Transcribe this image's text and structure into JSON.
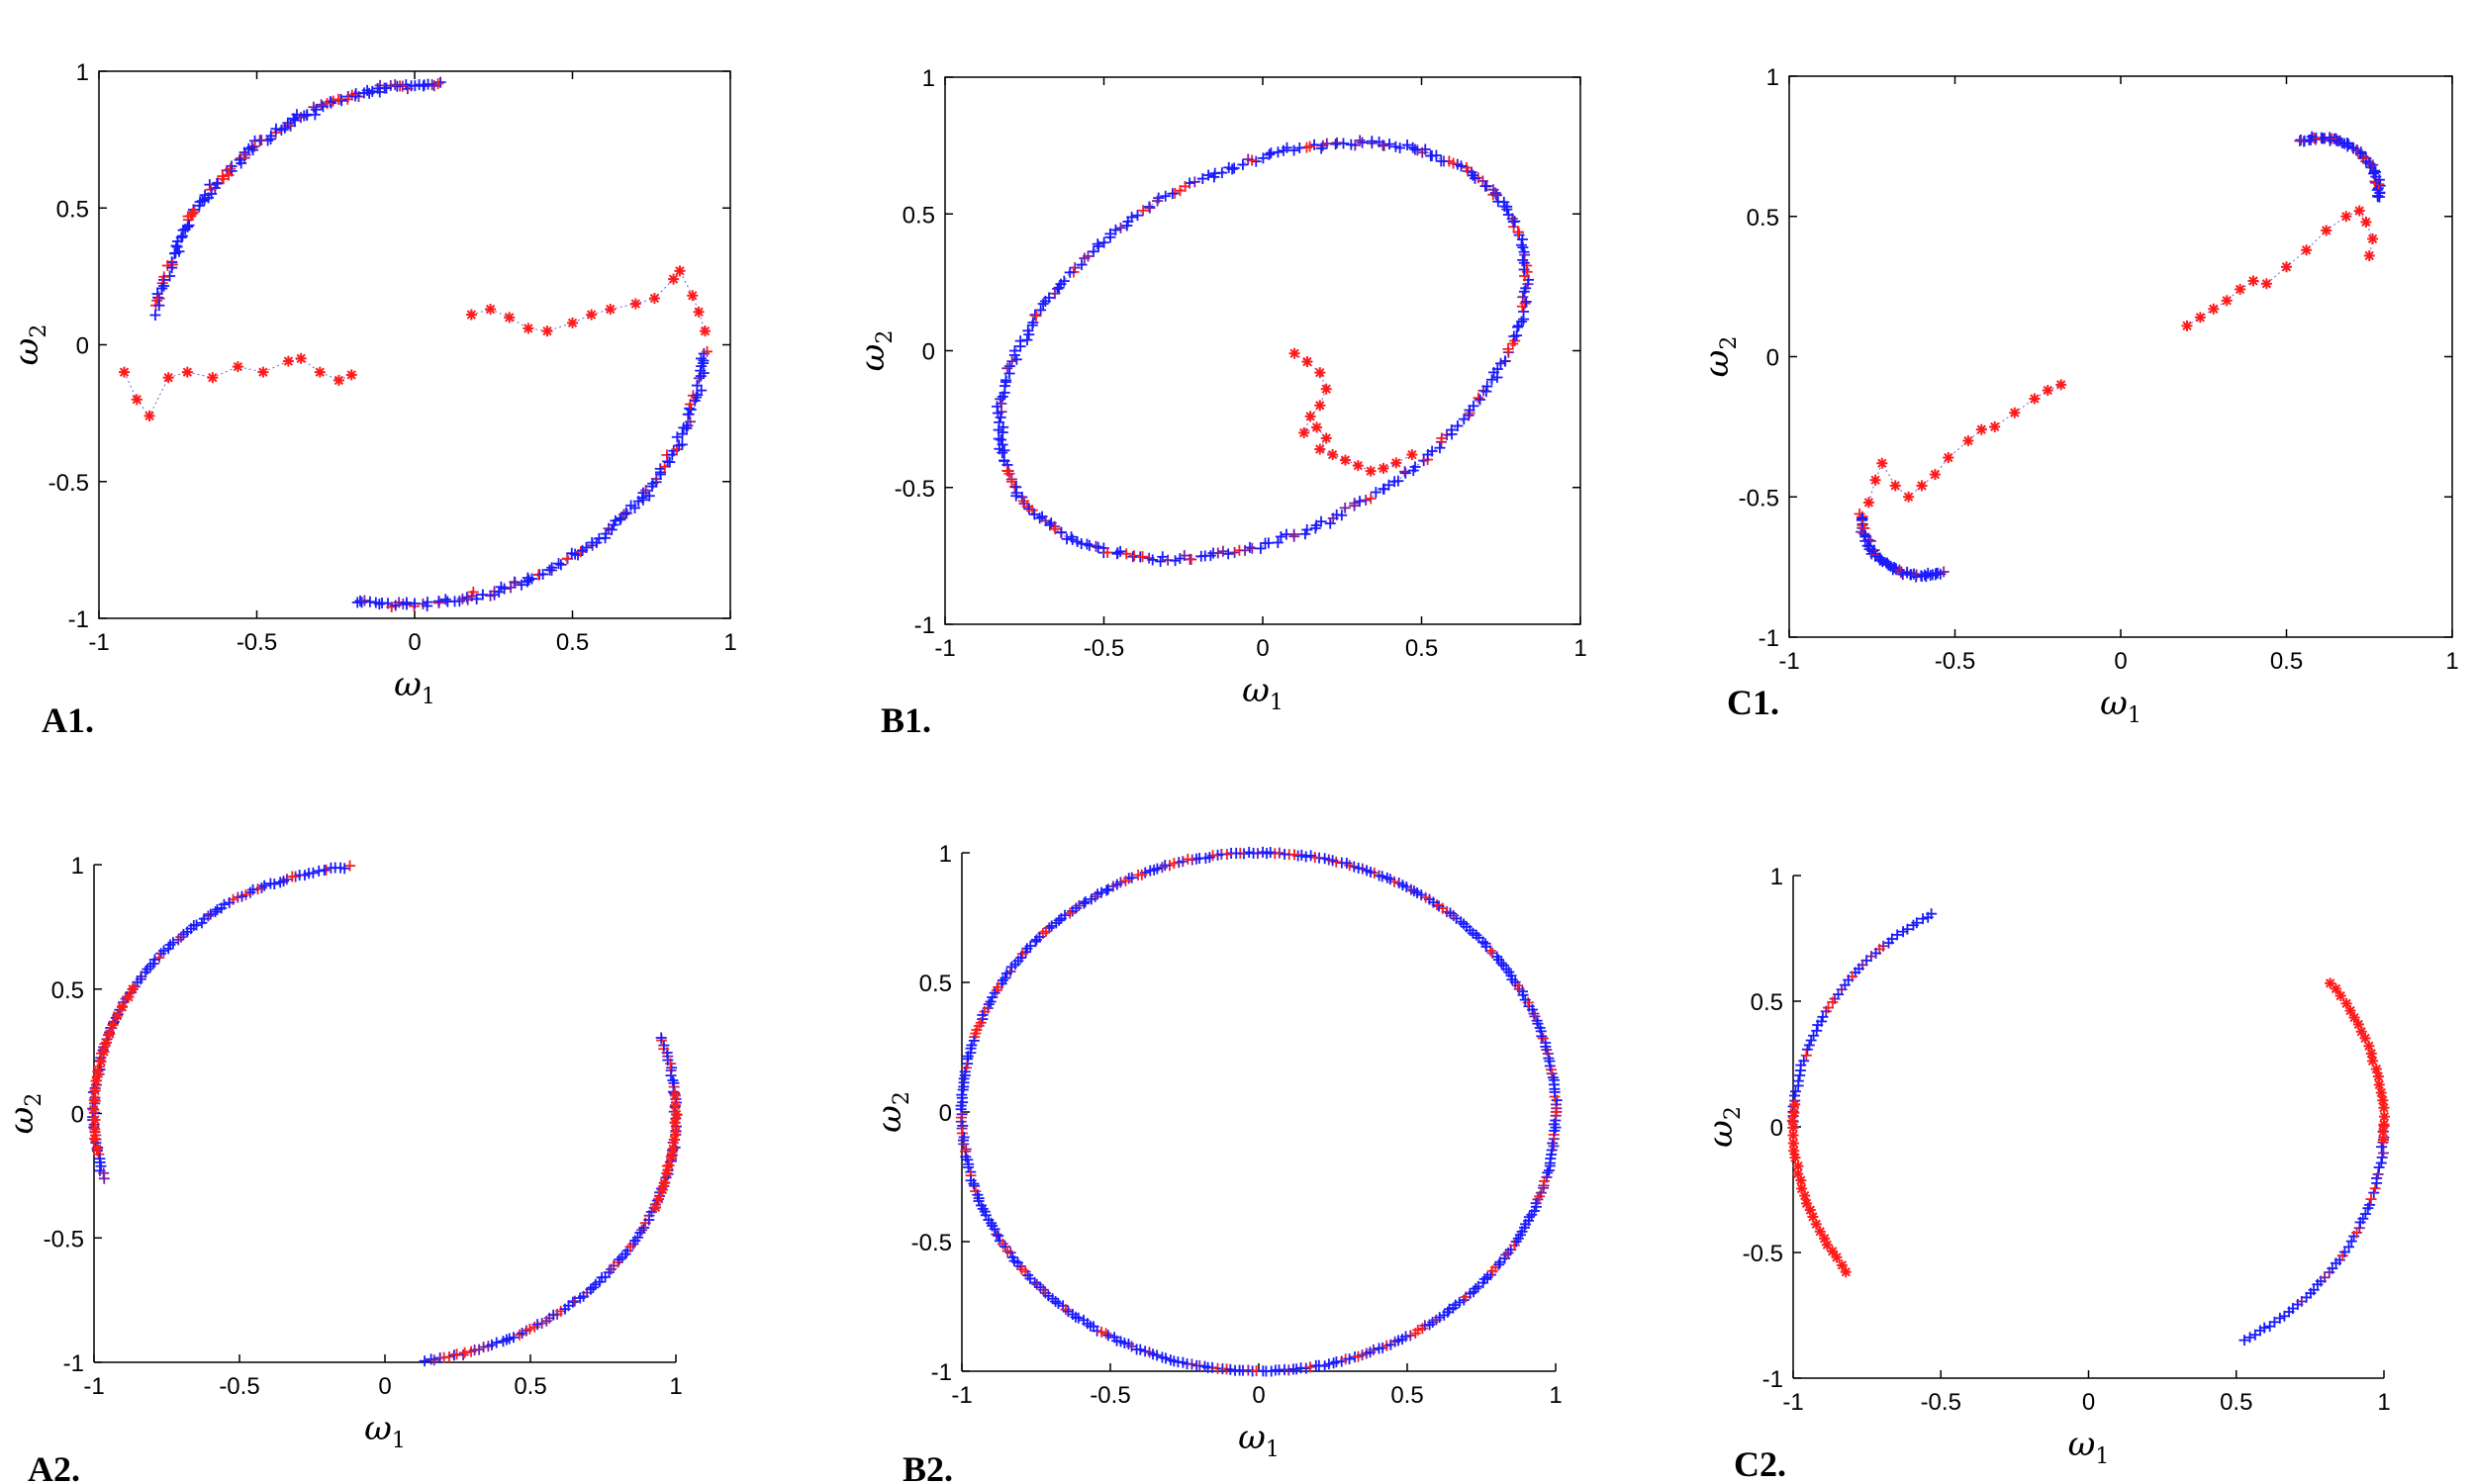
{
  "colors": {
    "red": "#ff1a1a",
    "blue": "#1a1aff",
    "purple": "#7a1f9e",
    "trace": "#3a3aee"
  },
  "chart_data": [
    {
      "id": "A1",
      "type": "scatter",
      "panel_label": "A1.",
      "boxed": true,
      "xlabel": "ω",
      "xlabel_sub": "1",
      "ylabel": "ω",
      "ylabel_sub": "2",
      "xlim": [
        -1,
        1
      ],
      "ylim": [
        -1,
        1
      ],
      "xticks": [
        -1,
        -0.5,
        0,
        0.5,
        1
      ],
      "xtick_labels": [
        "-1",
        "-0.5",
        "0",
        "0.5",
        "1"
      ],
      "yticks": [
        -1,
        -0.5,
        0,
        0.5,
        1
      ],
      "ytick_labels": [
        "-1",
        "-0.5",
        "0",
        "0.5",
        "1"
      ],
      "series": [
        {
          "color": "blue",
          "marker": "+",
          "arc": {
            "cx": 0.05,
            "cy": -0.05,
            "rx": 0.88,
            "ry": 1.0,
            "tilt": 0,
            "a0": 88,
            "a1": 170
          },
          "count": 130,
          "jitter": 0.018,
          "mix": 0.3,
          "trace": true
        },
        {
          "color": "blue",
          "marker": "+",
          "arc": {
            "cx": -0.05,
            "cy": 0.05,
            "rx": 0.97,
            "ry": 1.0,
            "tilt": 0,
            "a0": 262,
            "a1": 356
          },
          "count": 130,
          "jitter": 0.018,
          "mix": 0.3,
          "trace": true
        },
        {
          "color": "red",
          "marker": "*",
          "trace": true,
          "x": [
            -0.92,
            -0.88,
            -0.84,
            -0.78,
            -0.72,
            -0.64,
            -0.56,
            -0.48,
            -0.4,
            -0.36,
            -0.3,
            -0.24,
            -0.2
          ],
          "y": [
            -0.1,
            -0.2,
            -0.26,
            -0.12,
            -0.1,
            -0.12,
            -0.08,
            -0.1,
            -0.06,
            -0.05,
            -0.1,
            -0.13,
            -0.11
          ]
        },
        {
          "color": "red",
          "marker": "*",
          "trace": true,
          "x": [
            0.18,
            0.24,
            0.3,
            0.36,
            0.42,
            0.5,
            0.56,
            0.62,
            0.7,
            0.76,
            0.82,
            0.84,
            0.88,
            0.9,
            0.92
          ],
          "y": [
            0.11,
            0.13,
            0.1,
            0.06,
            0.05,
            0.08,
            0.11,
            0.13,
            0.15,
            0.17,
            0.24,
            0.27,
            0.18,
            0.12,
            0.05
          ]
        }
      ]
    },
    {
      "id": "B1",
      "type": "scatter",
      "panel_label": "B1.",
      "boxed": true,
      "xlabel": "ω",
      "xlabel_sub": "1",
      "ylabel": "ω",
      "ylabel_sub": "2",
      "xlim": [
        -1,
        1
      ],
      "ylim": [
        -1,
        1
      ],
      "xticks": [
        -1,
        -0.5,
        0,
        0.5,
        1
      ],
      "xtick_labels": [
        "-1",
        "-0.5",
        "0",
        "0.5",
        "1"
      ],
      "yticks": [
        -1,
        -0.5,
        0,
        0.5,
        1
      ],
      "ytick_labels": [
        "-1",
        "-0.5",
        "0",
        "0.5",
        "1"
      ],
      "series": [
        {
          "color": "blue",
          "marker": "+",
          "arc": {
            "cx": 0.0,
            "cy": 0.0,
            "rx": 0.86,
            "ry": 0.86,
            "tilt": 0,
            "a0": 0,
            "a1": 360,
            "ellipse_b1": true
          },
          "count": 320,
          "jitter": 0.016,
          "mix": 0.28,
          "trace": true
        },
        {
          "color": "red",
          "marker": "*",
          "trace": true,
          "x": [
            0.1,
            0.14,
            0.18,
            0.2,
            0.18,
            0.15,
            0.13,
            0.17,
            0.2,
            0.18,
            0.22,
            0.26,
            0.3,
            0.34,
            0.38,
            0.42,
            0.47
          ],
          "y": [
            -0.01,
            -0.04,
            -0.08,
            -0.14,
            -0.2,
            -0.24,
            -0.3,
            -0.28,
            -0.32,
            -0.36,
            -0.38,
            -0.4,
            -0.42,
            -0.44,
            -0.43,
            -0.41,
            -0.38
          ]
        }
      ]
    },
    {
      "id": "C1",
      "type": "scatter",
      "panel_label": "C1.",
      "boxed": true,
      "xlabel": "ω",
      "xlabel_sub": "1",
      "ylabel": "ω",
      "ylabel_sub": "2",
      "xlim": [
        -1,
        1
      ],
      "ylim": [
        -1,
        1
      ],
      "xticks": [
        -1,
        -0.5,
        0,
        0.5,
        1
      ],
      "xtick_labels": [
        "-1",
        "-0.5",
        "0",
        "0.5",
        "1"
      ],
      "yticks": [
        -1,
        -0.5,
        0,
        0.5,
        1
      ],
      "ytick_labels": [
        "-1",
        "-0.5",
        "0",
        "0.5",
        "1"
      ],
      "series": [
        {
          "color": "blue",
          "marker": "+",
          "arc": {
            "cx": 0.6,
            "cy": 0.58,
            "rx": 0.18,
            "ry": 0.2,
            "tilt": 0,
            "a0": -5,
            "a1": 110
          },
          "count": 60,
          "jitter": 0.012,
          "mix": 0.25,
          "trace": true
        },
        {
          "color": "blue",
          "marker": "+",
          "arc": {
            "cx": -0.6,
            "cy": -0.58,
            "rx": 0.18,
            "ry": 0.2,
            "tilt": 0,
            "a0": 175,
            "a1": 290
          },
          "count": 60,
          "jitter": 0.012,
          "mix": 0.25,
          "trace": true
        },
        {
          "color": "red",
          "marker": "*",
          "trace": true,
          "x": [
            -0.76,
            -0.74,
            -0.72,
            -0.68,
            -0.64,
            -0.6,
            -0.56,
            -0.52,
            -0.46,
            -0.42,
            -0.38,
            -0.32,
            -0.26,
            -0.22,
            -0.18
          ],
          "y": [
            -0.52,
            -0.44,
            -0.38,
            -0.46,
            -0.5,
            -0.46,
            -0.42,
            -0.36,
            -0.3,
            -0.26,
            -0.25,
            -0.2,
            -0.15,
            -0.12,
            -0.1
          ]
        },
        {
          "color": "red",
          "marker": "*",
          "trace": true,
          "x": [
            0.2,
            0.24,
            0.28,
            0.32,
            0.36,
            0.4,
            0.44,
            0.5,
            0.56,
            0.62,
            0.68,
            0.72,
            0.74,
            0.76,
            0.75
          ],
          "y": [
            0.11,
            0.14,
            0.17,
            0.2,
            0.24,
            0.27,
            0.26,
            0.32,
            0.38,
            0.45,
            0.5,
            0.52,
            0.48,
            0.42,
            0.36
          ]
        }
      ]
    },
    {
      "id": "A2",
      "type": "scatter",
      "panel_label": "A2.",
      "boxed": false,
      "xlabel": "ω",
      "xlabel_sub": "1",
      "ylabel": "ω",
      "ylabel_sub": "2",
      "xlim": [
        -1,
        1
      ],
      "ylim": [
        -1,
        1
      ],
      "xticks": [
        -1,
        -0.5,
        0,
        0.5,
        1
      ],
      "xtick_labels": [
        "-1",
        "-0.5",
        "0",
        "0.5",
        "1"
      ],
      "yticks": [
        -1,
        -0.5,
        0,
        0.5,
        1
      ],
      "ytick_labels": [
        "-1",
        "-0.5",
        "0",
        "0.5",
        "1"
      ],
      "series": [
        {
          "color": "blue",
          "marker": "+",
          "arc": {
            "cx": 0,
            "cy": 0,
            "rx": 1.0,
            "ry": 1.0,
            "tilt": 0,
            "a0": 97,
            "a1": 195
          },
          "count": 110,
          "jitter": 0.008,
          "mix": 0.35,
          "trace": false
        },
        {
          "color": "blue",
          "marker": "+",
          "arc": {
            "cx": 0,
            "cy": 0,
            "rx": 1.0,
            "ry": 1.0,
            "tilt": 0,
            "a0": 278,
            "a1": 378
          },
          "count": 110,
          "jitter": 0.008,
          "mix": 0.35,
          "trace": false
        },
        {
          "color": "red",
          "marker": "*",
          "arc": {
            "cx": 0,
            "cy": 0,
            "rx": 1.0,
            "ry": 1.0,
            "tilt": 0,
            "a0": 150,
            "a1": 188
          },
          "count": 18,
          "jitter": 0.006,
          "mix": 0,
          "trace": false
        },
        {
          "color": "red",
          "marker": "*",
          "arc": {
            "cx": 0,
            "cy": 0,
            "rx": 1.0,
            "ry": 1.0,
            "tilt": 0,
            "a0": 338,
            "a1": 364
          },
          "count": 14,
          "jitter": 0.006,
          "mix": 0,
          "trace": false
        }
      ]
    },
    {
      "id": "B2",
      "type": "scatter",
      "panel_label": "B2.",
      "boxed": false,
      "xlabel": "ω",
      "xlabel_sub": "1",
      "ylabel": "ω",
      "ylabel_sub": "2",
      "xlim": [
        -1,
        1
      ],
      "ylim": [
        -1,
        1
      ],
      "xticks": [
        -1,
        -0.5,
        0,
        0.5,
        1
      ],
      "xtick_labels": [
        "-1",
        "-0.5",
        "0",
        "0.5",
        "1"
      ],
      "yticks": [
        -1,
        -0.5,
        0,
        0.5,
        1
      ],
      "ytick_labels": [
        "-1",
        "-0.5",
        "0",
        "0.5",
        "1"
      ],
      "series": [
        {
          "color": "blue",
          "marker": "+",
          "arc": {
            "cx": 0,
            "cy": 0,
            "rx": 1.0,
            "ry": 1.0,
            "tilt": 0,
            "a0": 0,
            "a1": 360
          },
          "count": 420,
          "jitter": 0.006,
          "mix": 0.3,
          "trace": false
        }
      ]
    },
    {
      "id": "C2",
      "type": "scatter",
      "panel_label": "C2.",
      "boxed": false,
      "xlabel": "ω",
      "xlabel_sub": "1",
      "ylabel": "ω",
      "ylabel_sub": "2",
      "xlim": [
        -1,
        1
      ],
      "ylim": [
        -1,
        1
      ],
      "xticks": [
        -1,
        -0.5,
        0,
        0.5,
        1
      ],
      "xtick_labels": [
        "-1",
        "-0.5",
        "0",
        "0.5",
        "1"
      ],
      "yticks": [
        -1,
        -0.5,
        0,
        0.5,
        1
      ],
      "ytick_labels": [
        "-1",
        "-0.5",
        "0",
        "0.5",
        "1"
      ],
      "series": [
        {
          "color": "blue",
          "marker": "+",
          "arc": {
            "cx": 0,
            "cy": 0,
            "rx": 1.0,
            "ry": 1.0,
            "tilt": 0,
            "a0": 302,
            "a1": 360
          },
          "count": 50,
          "jitter": 0.006,
          "mix": 0.2,
          "trace": false
        },
        {
          "color": "blue",
          "marker": "+",
          "arc": {
            "cx": 0,
            "cy": 0,
            "rx": 1.0,
            "ry": 1.0,
            "tilt": 0,
            "a0": 122,
            "a1": 180
          },
          "count": 50,
          "jitter": 0.006,
          "mix": 0.2,
          "trace": false
        },
        {
          "color": "red",
          "marker": "*",
          "arc": {
            "cx": 0,
            "cy": 0,
            "rx": 1.0,
            "ry": 1.0,
            "tilt": 0,
            "a0": 175,
            "a1": 215
          },
          "count": 24,
          "jitter": 0.006,
          "mix": 0,
          "trace": false
        },
        {
          "color": "red",
          "marker": "*",
          "arc": {
            "cx": 0,
            "cy": 0,
            "rx": 1.0,
            "ry": 1.0,
            "tilt": 0,
            "a0": 357,
            "a1": 395
          },
          "count": 22,
          "jitter": 0.006,
          "mix": 0,
          "trace": false
        }
      ]
    }
  ]
}
